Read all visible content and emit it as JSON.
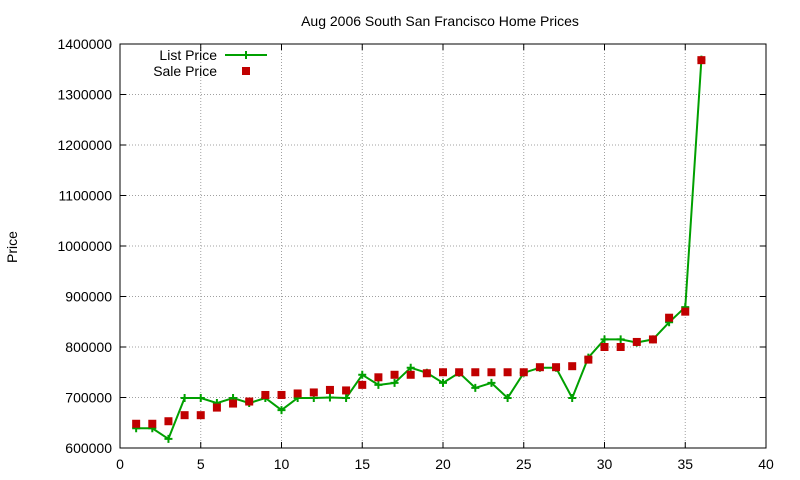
{
  "chart_data": {
    "type": "line",
    "title": "Aug 2006 South San Francisco Home Prices",
    "xlabel": "",
    "ylabel": "Price",
    "xlim": [
      0,
      40
    ],
    "ylim": [
      600000,
      1400000
    ],
    "xticks": [
      0,
      5,
      10,
      15,
      20,
      25,
      30,
      35,
      40
    ],
    "yticks": [
      600000,
      700000,
      800000,
      900000,
      1000000,
      1100000,
      1200000,
      1300000,
      1400000
    ],
    "grid": true,
    "legend_position": "top-left",
    "series": [
      {
        "name": "List Price",
        "style": "line-with-plus-markers",
        "color": "#00a000",
        "x": [
          1,
          2,
          3,
          4,
          5,
          6,
          7,
          8,
          9,
          10,
          11,
          12,
          13,
          14,
          15,
          16,
          17,
          18,
          19,
          20,
          21,
          22,
          23,
          24,
          25,
          26,
          27,
          28,
          29,
          30,
          31,
          32,
          33,
          34,
          35,
          36
        ],
        "values": [
          639000,
          639000,
          618000,
          699000,
          699000,
          689000,
          699000,
          689000,
          699000,
          675000,
          699000,
          699000,
          700000,
          699000,
          745000,
          725000,
          729000,
          759000,
          749000,
          729000,
          749000,
          719000,
          729000,
          699000,
          749000,
          759000,
          759000,
          699000,
          779000,
          815000,
          815000,
          809000,
          815000,
          849000,
          879000,
          1369000
        ]
      },
      {
        "name": "Sale Price",
        "style": "square-markers",
        "color": "#c00000",
        "x": [
          1,
          2,
          3,
          4,
          5,
          6,
          7,
          8,
          9,
          10,
          11,
          12,
          13,
          14,
          15,
          16,
          17,
          18,
          19,
          20,
          21,
          22,
          23,
          24,
          25,
          26,
          27,
          28,
          29,
          30,
          31,
          32,
          33,
          34,
          35,
          36
        ],
        "values": [
          648000,
          648000,
          653000,
          665000,
          665000,
          680000,
          688000,
          692000,
          705000,
          705000,
          708000,
          710000,
          715000,
          714000,
          725000,
          740000,
          745000,
          745000,
          748000,
          750000,
          750000,
          750000,
          750000,
          750000,
          750000,
          760000,
          760000,
          762000,
          775000,
          800000,
          800000,
          810000,
          815000,
          858000,
          870000,
          1368000
        ]
      }
    ]
  }
}
